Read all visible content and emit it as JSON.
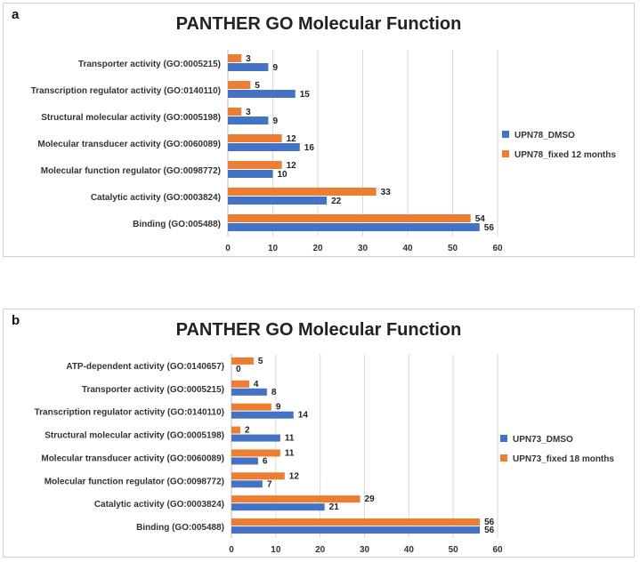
{
  "chart_data": [
    {
      "type": "bar",
      "orientation": "horizontal",
      "panel_label": "a",
      "title": "PANTHER GO Molecular Function",
      "categories": [
        "Transporter activity (GO:0005215)",
        "Transcription regulator activity (GO:0140110)",
        "Structural molecular activity (GO:0005198)",
        "Molecular transducer activity (GO:0060089)",
        "Molecular function regulator (GO:0098772)",
        "Catalytic activity (GO:0003824)",
        "Binding (GO:005488)"
      ],
      "series": [
        {
          "name": "UPN78_DMSO",
          "color": "#4472C4",
          "values": [
            9,
            15,
            9,
            16,
            10,
            22,
            56
          ]
        },
        {
          "name": "UPN78_fixed 12 months",
          "color": "#ED7D31",
          "values": [
            3,
            5,
            3,
            12,
            12,
            33,
            54
          ]
        }
      ],
      "xlim": [
        0,
        60
      ],
      "xticks": [
        "0",
        "10",
        "20",
        "30",
        "40",
        "50",
        "60"
      ],
      "grid": "vertical",
      "legend": "right"
    },
    {
      "type": "bar",
      "orientation": "horizontal",
      "panel_label": "b",
      "title": "PANTHER GO Molecular Function",
      "categories": [
        "ATP-dependent activity (GO:0140657)",
        "Transporter activity (GO:0005215)",
        "Transcription regulator activity (GO:0140110)",
        "Structural molecular activity (GO:0005198)",
        "Molecular transducer activity (GO:0060089)",
        "Molecular function regulator (GO:0098772)",
        "Catalytic activity (GO:0003824)",
        "Binding (GO:005488)"
      ],
      "series": [
        {
          "name": "UPN73_DMSO",
          "color": "#4472C4",
          "values": [
            0,
            8,
            14,
            11,
            6,
            7,
            21,
            56
          ]
        },
        {
          "name": "UPN73_fixed 18 months",
          "color": "#ED7D31",
          "values": [
            5,
            4,
            9,
            2,
            11,
            12,
            29,
            56
          ]
        }
      ],
      "xlim": [
        0,
        60
      ],
      "xticks": [
        "0",
        "10",
        "20",
        "30",
        "40",
        "50",
        "60"
      ],
      "grid": "vertical",
      "legend": "right"
    }
  ]
}
